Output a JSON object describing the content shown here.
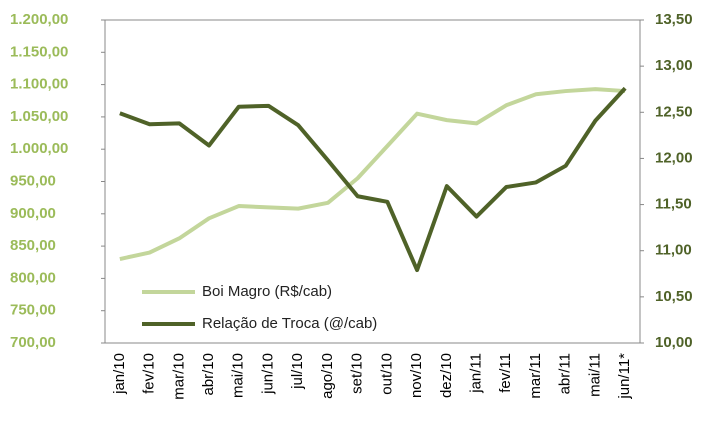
{
  "chart_data": {
    "type": "line",
    "categories": [
      "jan/10",
      "fev/10",
      "mar/10",
      "abr/10",
      "mai/10",
      "jun/10",
      "jul/10",
      "ago/10",
      "set/10",
      "out/10",
      "nov/10",
      "dez/10",
      "jan/11",
      "fev/11",
      "mar/11",
      "abr/11",
      "mai/11",
      "jun/11*"
    ],
    "series": [
      {
        "name": "Boi Magro (R$/cab)",
        "color": "#c3d69b",
        "values": [
          830,
          840,
          862,
          893,
          912,
          910,
          908,
          917,
          955,
          1005,
          1055,
          1045,
          1040,
          1068,
          1085,
          1090,
          1093,
          1090
        ]
      },
      {
        "name": "Relação de Troca (@/cab)",
        "color": "#4f6228",
        "axis": "y2",
        "values": [
          12.49,
          12.37,
          12.38,
          12.14,
          12.56,
          12.57,
          12.36,
          11.98,
          11.59,
          11.53,
          10.79,
          11.7,
          11.37,
          11.69,
          11.74,
          11.92,
          12.41,
          12.76
        ]
      }
    ],
    "ylim": [
      700,
      1200
    ],
    "yticks": [
      {
        "value": 700,
        "label": "700,00"
      },
      {
        "value": 750,
        "label": "750,00"
      },
      {
        "value": 800,
        "label": "800,00"
      },
      {
        "value": 850,
        "label": "850,00"
      },
      {
        "value": 900,
        "label": "900,00"
      },
      {
        "value": 950,
        "label": "950,00"
      },
      {
        "value": 1000,
        "label": "1.000,00"
      },
      {
        "value": 1050,
        "label": "1.050,00"
      },
      {
        "value": 1100,
        "label": "1.100,00"
      },
      {
        "value": 1150,
        "label": "1.150,00"
      },
      {
        "value": 1200,
        "label": "1.200,00"
      }
    ],
    "y2lim": [
      10,
      13.5
    ],
    "y2ticks": [
      {
        "value": 10,
        "label": "10,00"
      },
      {
        "value": 10.5,
        "label": "10,50"
      },
      {
        "value": 11,
        "label": "11,00"
      },
      {
        "value": 11.5,
        "label": "11,50"
      },
      {
        "value": 12,
        "label": "12,00"
      },
      {
        "value": 12.5,
        "label": "12,50"
      },
      {
        "value": 13,
        "label": "13,00"
      },
      {
        "value": 13.5,
        "label": "13,50"
      }
    ],
    "ytick_color": "#9bbb59",
    "y2tick_color": "#4f6228"
  }
}
